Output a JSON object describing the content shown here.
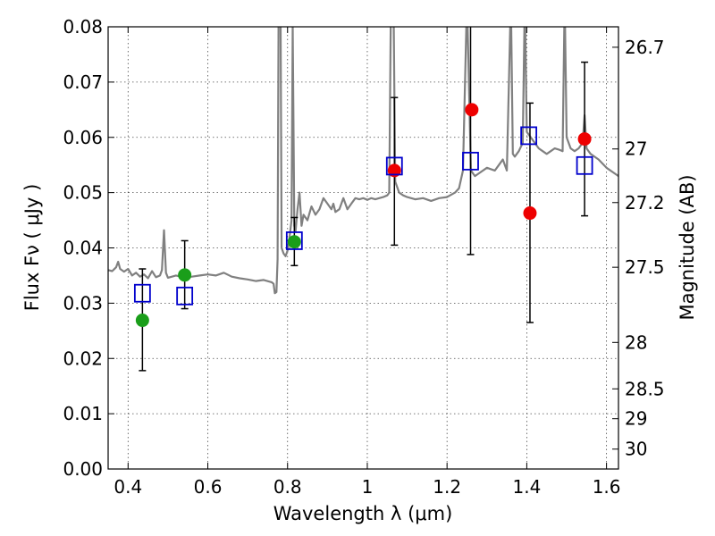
{
  "chart_data": {
    "type": "scatter",
    "title": "",
    "xlabel": "Wavelength  λ (μm)",
    "ylabel": "Flux  Fν  ( μJy )",
    "y2label": "Magnitude (AB)",
    "xlim": [
      0.35,
      1.63
    ],
    "ylim": [
      0.0,
      0.08
    ],
    "x_ticks": [
      0.4,
      0.6,
      0.8,
      1.0,
      1.2,
      1.4,
      1.6
    ],
    "x_tick_labels": [
      "0.4",
      "0.6",
      "0.8",
      "1",
      "1.2",
      "1.4",
      "1.6"
    ],
    "y_ticks": [
      0.0,
      0.01,
      0.02,
      0.03,
      0.04,
      0.05,
      0.06,
      0.07,
      0.08
    ],
    "y_tick_labels": [
      "0.00",
      "0.01",
      "0.02",
      "0.03",
      "0.04",
      "0.05",
      "0.06",
      "0.07",
      "0.08"
    ],
    "y2_ticks": [
      {
        "label": "26.7",
        "flux": 0.0763
      },
      {
        "label": "27",
        "flux": 0.0579
      },
      {
        "label": "27.2",
        "flux": 0.0482
      },
      {
        "label": "27.5",
        "flux": 0.0365
      },
      {
        "label": "28",
        "flux": 0.0229
      },
      {
        "label": "28.5",
        "flux": 0.0145
      },
      {
        "label": "29",
        "flux": 0.0091
      },
      {
        "label": "30",
        "flux": 0.0036
      }
    ],
    "grid": true,
    "colors": {
      "model": "#808080",
      "photometry": "#1a9e1a",
      "photometry_red": "#ee0000",
      "model_band": "#0000cc",
      "errorbar": "#000000"
    },
    "series": [
      {
        "kind": "line",
        "color": "#808080",
        "points": [
          [
            0.35,
            0.036
          ],
          [
            0.36,
            0.0358
          ],
          [
            0.37,
            0.0365
          ],
          [
            0.375,
            0.0375
          ],
          [
            0.38,
            0.0362
          ],
          [
            0.39,
            0.0357
          ],
          [
            0.4,
            0.0362
          ],
          [
            0.41,
            0.035
          ],
          [
            0.42,
            0.0355
          ],
          [
            0.43,
            0.0348
          ],
          [
            0.44,
            0.0352
          ],
          [
            0.45,
            0.0345
          ],
          [
            0.46,
            0.0358
          ],
          [
            0.47,
            0.0347
          ],
          [
            0.48,
            0.035
          ],
          [
            0.485,
            0.036
          ],
          [
            0.49,
            0.0432
          ],
          [
            0.495,
            0.0355
          ],
          [
            0.5,
            0.0346
          ],
          [
            0.52,
            0.035
          ],
          [
            0.54,
            0.0347
          ],
          [
            0.56,
            0.0348
          ],
          [
            0.58,
            0.035
          ],
          [
            0.6,
            0.0352
          ],
          [
            0.62,
            0.035
          ],
          [
            0.64,
            0.0355
          ],
          [
            0.66,
            0.0348
          ],
          [
            0.68,
            0.0345
          ],
          [
            0.7,
            0.0343
          ],
          [
            0.72,
            0.034
          ],
          [
            0.74,
            0.0342
          ],
          [
            0.76,
            0.0338
          ],
          [
            0.765,
            0.0335
          ],
          [
            0.768,
            0.0318
          ],
          [
            0.772,
            0.032
          ],
          [
            0.775,
            0.038
          ],
          [
            0.778,
            0.09
          ],
          [
            0.782,
            0.09
          ],
          [
            0.785,
            0.04
          ],
          [
            0.79,
            0.039
          ],
          [
            0.795,
            0.0385
          ],
          [
            0.8,
            0.0395
          ],
          [
            0.805,
            0.042
          ],
          [
            0.81,
            0.045
          ],
          [
            0.813,
            0.08
          ],
          [
            0.817,
            0.044
          ],
          [
            0.82,
            0.043
          ],
          [
            0.825,
            0.047
          ],
          [
            0.83,
            0.05
          ],
          [
            0.835,
            0.044
          ],
          [
            0.84,
            0.046
          ],
          [
            0.85,
            0.045
          ],
          [
            0.86,
            0.0475
          ],
          [
            0.87,
            0.046
          ],
          [
            0.88,
            0.047
          ],
          [
            0.89,
            0.049
          ],
          [
            0.9,
            0.048
          ],
          [
            0.91,
            0.047
          ],
          [
            0.915,
            0.048
          ],
          [
            0.92,
            0.0465
          ],
          [
            0.93,
            0.047
          ],
          [
            0.94,
            0.049
          ],
          [
            0.95,
            0.047
          ],
          [
            0.96,
            0.048
          ],
          [
            0.97,
            0.049
          ],
          [
            0.98,
            0.0488
          ],
          [
            0.99,
            0.049
          ],
          [
            1.0,
            0.0487
          ],
          [
            1.01,
            0.049
          ],
          [
            1.02,
            0.0488
          ],
          [
            1.03,
            0.049
          ],
          [
            1.04,
            0.0492
          ],
          [
            1.05,
            0.0495
          ],
          [
            1.055,
            0.05
          ],
          [
            1.06,
            0.09
          ],
          [
            1.065,
            0.09
          ],
          [
            1.07,
            0.052
          ],
          [
            1.08,
            0.05
          ],
          [
            1.09,
            0.0495
          ],
          [
            1.1,
            0.0492
          ],
          [
            1.12,
            0.0488
          ],
          [
            1.14,
            0.049
          ],
          [
            1.16,
            0.0485
          ],
          [
            1.18,
            0.049
          ],
          [
            1.2,
            0.0492
          ],
          [
            1.22,
            0.05
          ],
          [
            1.23,
            0.0508
          ],
          [
            1.24,
            0.054
          ],
          [
            1.25,
            0.085
          ],
          [
            1.26,
            0.054
          ],
          [
            1.27,
            0.053
          ],
          [
            1.28,
            0.0535
          ],
          [
            1.3,
            0.0545
          ],
          [
            1.32,
            0.054
          ],
          [
            1.33,
            0.055
          ],
          [
            1.34,
            0.056
          ],
          [
            1.35,
            0.054
          ],
          [
            1.36,
            0.085
          ],
          [
            1.365,
            0.057
          ],
          [
            1.37,
            0.0565
          ],
          [
            1.38,
            0.0575
          ],
          [
            1.39,
            0.059
          ],
          [
            1.395,
            0.085
          ],
          [
            1.4,
            0.061
          ],
          [
            1.41,
            0.06
          ],
          [
            1.42,
            0.059
          ],
          [
            1.43,
            0.058
          ],
          [
            1.44,
            0.0575
          ],
          [
            1.45,
            0.057
          ],
          [
            1.46,
            0.0575
          ],
          [
            1.47,
            0.058
          ],
          [
            1.48,
            0.0578
          ],
          [
            1.49,
            0.0575
          ],
          [
            1.495,
            0.085
          ],
          [
            1.5,
            0.06
          ],
          [
            1.51,
            0.058
          ],
          [
            1.52,
            0.0575
          ],
          [
            1.53,
            0.058
          ],
          [
            1.54,
            0.059
          ],
          [
            1.545,
            0.064
          ],
          [
            1.55,
            0.058
          ],
          [
            1.56,
            0.057
          ],
          [
            1.58,
            0.056
          ],
          [
            1.6,
            0.0545
          ],
          [
            1.62,
            0.0535
          ],
          [
            1.63,
            0.053
          ]
        ]
      },
      {
        "kind": "errorbar",
        "color": "#000000",
        "points": [
          {
            "x": 0.436,
            "low": 0.0178,
            "high": 0.0362
          },
          {
            "x": 0.542,
            "low": 0.029,
            "high": 0.0413
          },
          {
            "x": 0.817,
            "low": 0.0368,
            "high": 0.0455
          },
          {
            "x": 1.068,
            "low": 0.0405,
            "high": 0.0672
          },
          {
            "x": 1.259,
            "low": 0.0388,
            "high": 0.081
          },
          {
            "x": 1.408,
            "low": 0.0265,
            "high": 0.0662
          },
          {
            "x": 1.545,
            "low": 0.0458,
            "high": 0.0736
          }
        ]
      },
      {
        "kind": "marker-circle",
        "color": "#1a9e1a",
        "points": [
          [
            0.436,
            0.0269
          ],
          [
            0.542,
            0.0351
          ],
          [
            0.817,
            0.0411
          ]
        ]
      },
      {
        "kind": "marker-circle",
        "color": "#ee0000",
        "points": [
          [
            1.068,
            0.054
          ],
          [
            1.262,
            0.065
          ],
          [
            1.408,
            0.0463
          ],
          [
            1.545,
            0.0597
          ]
        ]
      },
      {
        "kind": "marker-square",
        "color": "#0000cc",
        "points": [
          [
            0.436,
            0.0318
          ],
          [
            0.542,
            0.0313
          ],
          [
            0.817,
            0.0413
          ],
          [
            1.068,
            0.0548
          ],
          [
            1.259,
            0.0557
          ],
          [
            1.405,
            0.0603
          ],
          [
            1.545,
            0.0549
          ]
        ]
      }
    ]
  }
}
